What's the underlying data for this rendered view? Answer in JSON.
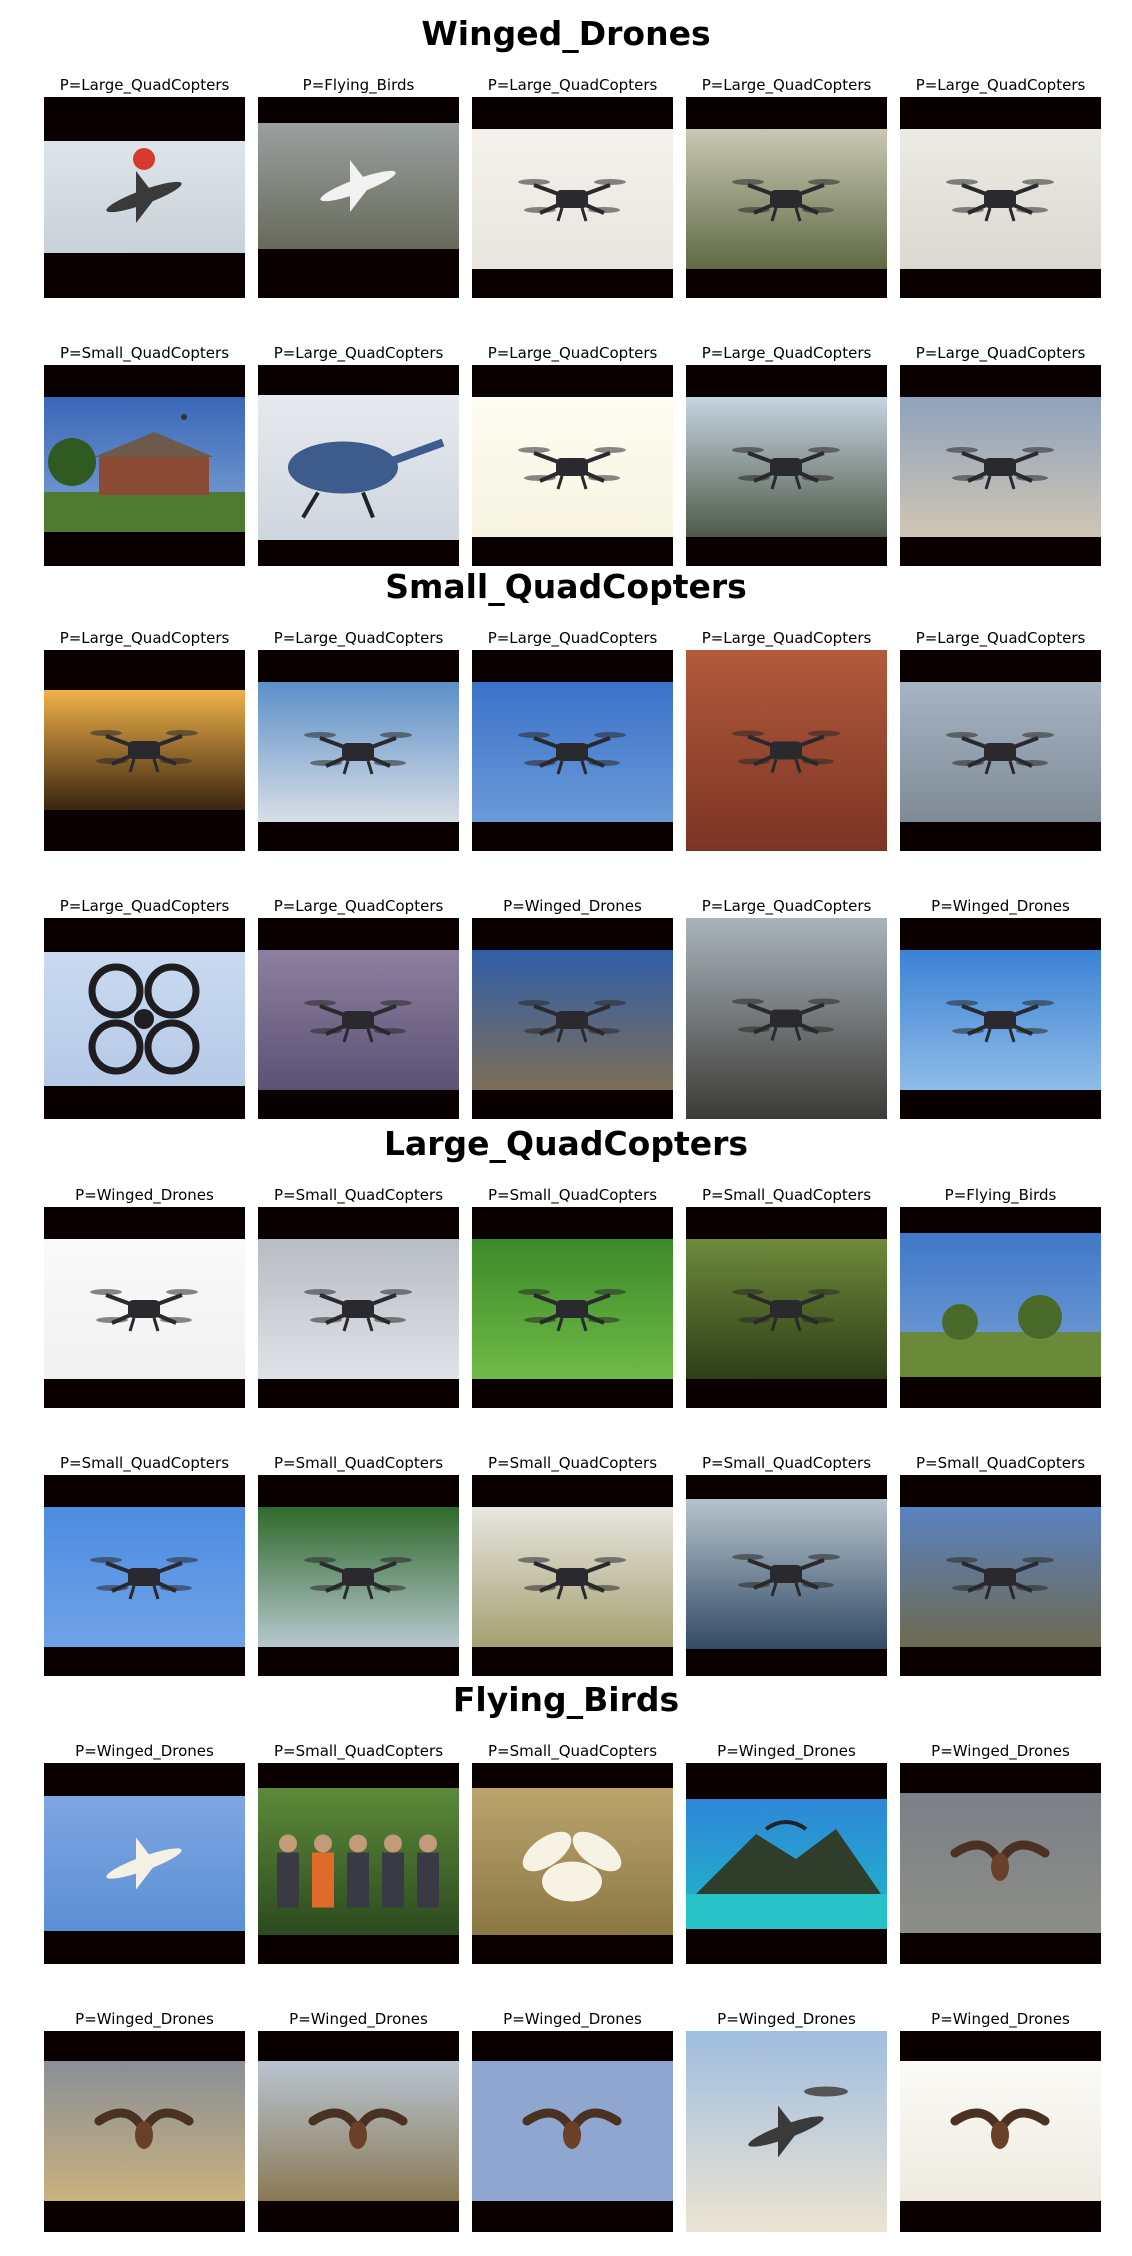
{
  "sections": [
    {
      "title": "Winged_Drones",
      "rows": [
        [
          {
            "label": "P=Large_QuadCopters",
            "kind": "aircraft",
            "bg": [
              "#dde4ea",
              "#c9d1d8"
            ]
          },
          {
            "label": "P=Flying_Birds",
            "kind": "wingdrone",
            "bg": [
              "#9aa0a0",
              "#676a5a"
            ]
          },
          {
            "label": "P=Large_QuadCopters",
            "kind": "quad",
            "bg": [
              "#f4f1ec",
              "#e9e6e0"
            ]
          },
          {
            "label": "P=Large_QuadCopters",
            "kind": "quad",
            "bg": [
              "#c9c8b4",
              "#5f6a44"
            ]
          },
          {
            "label": "P=Large_QuadCopters",
            "kind": "quad",
            "bg": [
              "#ecebe4",
              "#dad8cf"
            ]
          }
        ],
        [
          {
            "label": "P=Small_QuadCopters",
            "kind": "house",
            "bg": [
              "#3a66b8",
              "#7fa6d6"
            ]
          },
          {
            "label": "P=Large_QuadCopters",
            "kind": "heli",
            "bg": [
              "#e6eaee",
              "#cfd6de"
            ]
          },
          {
            "label": "P=Large_QuadCopters",
            "kind": "quad",
            "bg": [
              "#fdfcf0",
              "#f7f4e2"
            ]
          },
          {
            "label": "P=Large_QuadCopters",
            "kind": "quad",
            "bg": [
              "#c7d4e2",
              "#4e5a48"
            ]
          },
          {
            "label": "P=Large_QuadCopters",
            "kind": "quad",
            "bg": [
              "#8ea2bd",
              "#cfc6b4"
            ]
          }
        ]
      ]
    },
    {
      "title": "Small_QuadCopters",
      "rows": [
        [
          {
            "label": "P=Large_QuadCopters",
            "kind": "sunset",
            "bg": [
              "#f0b24a",
              "#3a2410"
            ]
          },
          {
            "label": "P=Large_QuadCopters",
            "kind": "quad",
            "bg": [
              "#5b8fc8",
              "#d8dee6"
            ]
          },
          {
            "label": "P=Large_QuadCopters",
            "kind": "quad",
            "bg": [
              "#3b72c8",
              "#6a9ad8"
            ]
          },
          {
            "label": "P=Large_QuadCopters",
            "kind": "building",
            "bg": [
              "#b25a3c",
              "#7b3424"
            ]
          },
          {
            "label": "P=Large_QuadCopters",
            "kind": "quad",
            "bg": [
              "#a6b4c4",
              "#7f8a96"
            ]
          }
        ],
        [
          {
            "label": "P=Large_QuadCopters",
            "kind": "ring",
            "bg": [
              "#c9d9f0",
              "#b6c9e6"
            ]
          },
          {
            "label": "P=Large_QuadCopters",
            "kind": "quad",
            "bg": [
              "#8e7fa0",
              "#5b5274"
            ]
          },
          {
            "label": "P=Winged_Drones",
            "kind": "quad",
            "bg": [
              "#2f5fa8",
              "#7d6e58"
            ]
          },
          {
            "label": "P=Large_QuadCopters",
            "kind": "road",
            "bg": [
              "#a9b4ba",
              "#3c3a36"
            ]
          },
          {
            "label": "P=Winged_Drones",
            "kind": "quad",
            "bg": [
              "#3b82d4",
              "#8fbce8"
            ]
          }
        ]
      ]
    },
    {
      "title": "Large_QuadCopters",
      "rows": [
        [
          {
            "label": "P=Winged_Drones",
            "kind": "quad",
            "bg": [
              "#fafafa",
              "#f1f1f1"
            ]
          },
          {
            "label": "P=Small_QuadCopters",
            "kind": "quad",
            "bg": [
              "#b8bcc4",
              "#dfe2e6"
            ]
          },
          {
            "label": "P=Small_QuadCopters",
            "kind": "quad",
            "bg": [
              "#3c8a2a",
              "#6fba46"
            ]
          },
          {
            "label": "P=Small_QuadCopters",
            "kind": "quad",
            "bg": [
              "#6e8a3a",
              "#2e3e18"
            ]
          },
          {
            "label": "P=Flying_Birds",
            "kind": "field",
            "bg": [
              "#3e78c8",
              "#7aa0d4"
            ]
          }
        ],
        [
          {
            "label": "P=Small_QuadCopters",
            "kind": "quad",
            "bg": [
              "#4d8be0",
              "#6fa3e8"
            ]
          },
          {
            "label": "P=Small_QuadCopters",
            "kind": "quad",
            "bg": [
              "#2f6a2a",
              "#b7c7cf"
            ]
          },
          {
            "label": "P=Small_QuadCopters",
            "kind": "quad",
            "bg": [
              "#e7e6e0",
              "#a4a070"
            ]
          },
          {
            "label": "P=Small_QuadCopters",
            "kind": "water",
            "bg": [
              "#b7c3cc",
              "#334b66"
            ]
          },
          {
            "label": "P=Small_QuadCopters",
            "kind": "quad",
            "bg": [
              "#5a82c0",
              "#6d6a50"
            ]
          }
        ]
      ]
    },
    {
      "title": "Flying_Birds",
      "rows": [
        [
          {
            "label": "P=Winged_Drones",
            "kind": "plane",
            "bg": [
              "#7ea6e2",
              "#5b8fd4"
            ]
          },
          {
            "label": "P=Small_QuadCopters",
            "kind": "people",
            "bg": [
              "#5c8a3a",
              "#2c4a1e"
            ]
          },
          {
            "label": "P=Small_QuadCopters",
            "kind": "swan",
            "bg": [
              "#bba56e",
              "#8b7744"
            ]
          },
          {
            "label": "P=Winged_Drones",
            "kind": "island",
            "bg": [
              "#2f86d8",
              "#1fb8c8"
            ]
          },
          {
            "label": "P=Winged_Drones",
            "kind": "bird",
            "bg": [
              "#7b8088",
              "#8d8e86"
            ]
          }
        ],
        [
          {
            "label": "P=Winged_Drones",
            "kind": "bird",
            "bg": [
              "#8a8f96",
              "#c9b27e"
            ]
          },
          {
            "label": "P=Winged_Drones",
            "kind": "bird",
            "bg": [
              "#b9c4d2",
              "#8a7a54"
            ]
          },
          {
            "label": "P=Winged_Drones",
            "kind": "bird",
            "bg": [
              "#8fa6d0",
              "#8fa6d0"
            ]
          },
          {
            "label": "P=Winged_Drones",
            "kind": "jets",
            "bg": [
              "#9fbde0",
              "#ece4d2"
            ]
          },
          {
            "label": "P=Winged_Drones",
            "kind": "bird",
            "bg": [
              "#fbfaf6",
              "#eeeae0"
            ]
          }
        ]
      ]
    }
  ]
}
